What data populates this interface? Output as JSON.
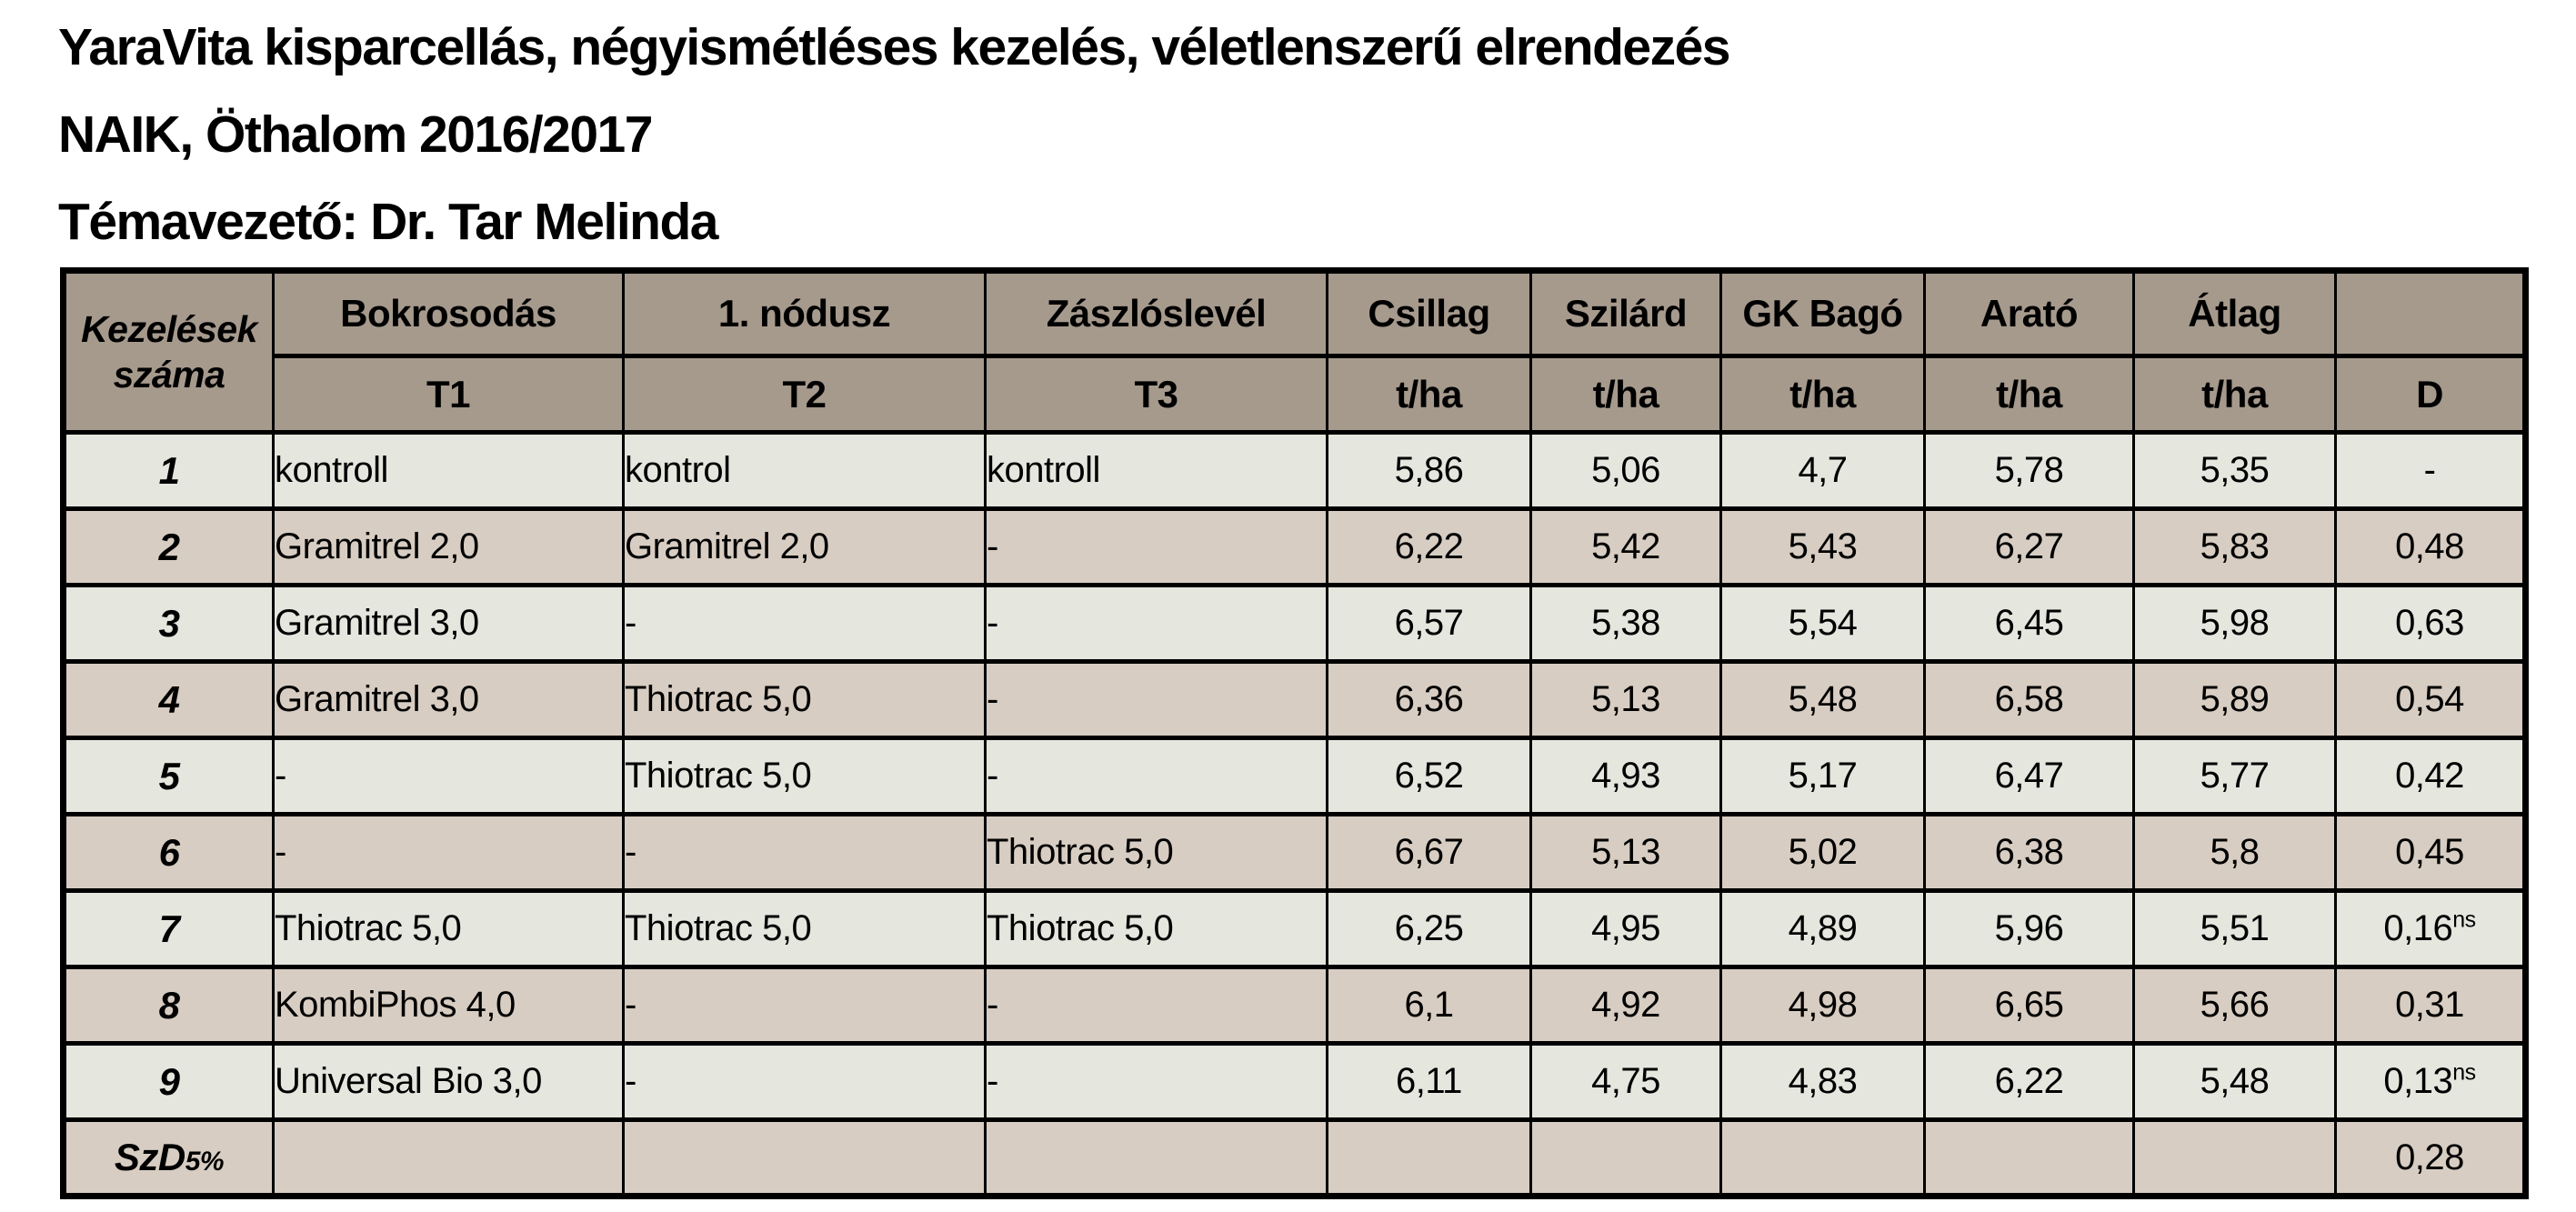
{
  "page": {
    "title_lines": [
      "YaraVita kisparcellás, négyismétléses kezelés, véletlenszerű elrendezés",
      "NAIK, Öthalom 2016/2017",
      "Témavezető: Dr. Tar Melinda"
    ]
  },
  "colors": {
    "page_bg": "#ffffff",
    "header_bg": "#a69a8d",
    "row_light_bg": "#e5e6de",
    "row_dark_bg": "#d7cdc2",
    "border": "#000000",
    "text": "#000000"
  },
  "table": {
    "header": {
      "col1_line1": "Kezelések",
      "col1_line2": "száma",
      "stages": [
        {
          "name": "Bokrosodás",
          "timing": "T1"
        },
        {
          "name": "1. nódusz",
          "timing": "T2"
        },
        {
          "name": "Zászlóslevél",
          "timing": "T3"
        }
      ],
      "varieties": [
        {
          "name": "Csillag",
          "unit": "t/ha"
        },
        {
          "name": "Szilárd",
          "unit": "t/ha"
        },
        {
          "name": "GK Bagó",
          "unit": "t/ha"
        },
        {
          "name": "Arató",
          "unit": "t/ha"
        },
        {
          "name": "Átlag",
          "unit": "t/ha"
        }
      ],
      "d_blank": "",
      "d_label": "D"
    },
    "rows": [
      [
        "1",
        "kontroll",
        "kontrol",
        "kontroll",
        "5,86",
        "5,06",
        "4,7",
        "5,78",
        "5,35",
        "-"
      ],
      [
        "2",
        "Gramitrel 2,0",
        "Gramitrel 2,0",
        "-",
        "6,22",
        "5,42",
        "5,43",
        "6,27",
        "5,83",
        "0,48"
      ],
      [
        "3",
        "Gramitrel 3,0",
        "-",
        "-",
        "6,57",
        "5,38",
        "5,54",
        "6,45",
        "5,98",
        "0,63"
      ],
      [
        "4",
        "Gramitrel 3,0",
        "Thiotrac 5,0",
        "-",
        "6,36",
        "5,13",
        "5,48",
        "6,58",
        "5,89",
        "0,54"
      ],
      [
        "5",
        "-",
        "Thiotrac 5,0",
        "-",
        "6,52",
        "4,93",
        "5,17",
        "6,47",
        "5,77",
        "0,42"
      ],
      [
        "6",
        "-",
        "-",
        "Thiotrac 5,0",
        "6,67",
        "5,13",
        "5,02",
        "6,38",
        "5,8",
        "0,45"
      ],
      [
        "7",
        "Thiotrac 5,0",
        "Thiotrac 5,0",
        "Thiotrac 5,0",
        "6,25",
        "4,95",
        "4,89",
        "5,96",
        "5,51",
        {
          "text": "0,16",
          "sup": "ns"
        }
      ],
      [
        "8",
        "KombiPhos 4,0",
        "-",
        "-",
        "6,1",
        "4,92",
        "4,98",
        "6,65",
        "5,66",
        "0,31"
      ],
      [
        "9",
        "Universal Bio 3,0",
        "-",
        "-",
        "6,11",
        "4,75",
        "4,83",
        "6,22",
        "5,48",
        {
          "text": "0,13",
          "sup": "ns"
        }
      ]
    ],
    "footer": {
      "label": "SzD",
      "label_sub": "5%",
      "empty_cells": [
        "",
        "",
        "",
        "",
        "",
        "",
        "",
        ""
      ],
      "d_value": "0,28"
    }
  }
}
